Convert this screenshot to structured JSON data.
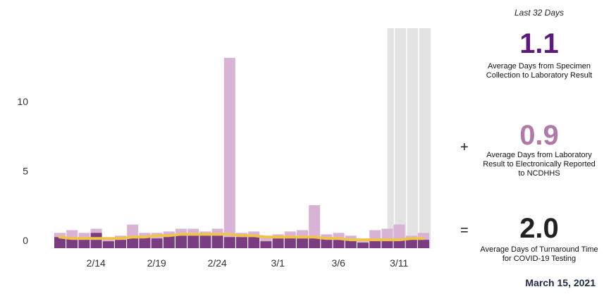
{
  "chart_data": {
    "type": "bar",
    "categories": [
      "2/11",
      "2/12",
      "2/13",
      "2/14",
      "2/15",
      "2/16",
      "2/17",
      "2/18",
      "2/19",
      "2/20",
      "2/21",
      "2/22",
      "2/23",
      "2/24",
      "2/25",
      "2/26",
      "2/27",
      "2/28",
      "3/1",
      "3/2",
      "3/3",
      "3/4",
      "3/5",
      "3/6",
      "3/7",
      "3/8",
      "3/9",
      "3/10",
      "3/11",
      "3/12",
      "3/13"
    ],
    "x_tick_labels": [
      "2/14",
      "2/19",
      "2/24",
      "3/1",
      "3/6",
      "3/11"
    ],
    "y_tick_labels": [
      "0",
      "5",
      "10"
    ],
    "ylim": [
      0,
      14.5
    ],
    "series": [
      {
        "values": [
          0.8,
          0.7,
          0.7,
          1.1,
          0.5,
          0.6,
          0.7,
          0.8,
          0.7,
          0.9,
          0.9,
          0.9,
          0.9,
          0.9,
          0.8,
          0.8,
          0.8,
          0.5,
          0.7,
          0.8,
          0.7,
          0.8,
          0.7,
          0.6,
          0.6,
          0.4,
          0.6,
          0.6,
          0.6,
          0.7,
          0.6
        ]
      },
      {
        "values": [
          1.1,
          1.3,
          1.1,
          1.4,
          0.7,
          0.9,
          1.7,
          1.1,
          1.1,
          1.2,
          1.4,
          1.4,
          1.2,
          1.4,
          13.7,
          1.1,
          1.2,
          0.8,
          1.0,
          1.2,
          1.3,
          3.1,
          1.0,
          1.1,
          0.9,
          0.5,
          1.3,
          1.4,
          1.7,
          0.9,
          1.1
        ]
      },
      {
        "values": [
          0.8,
          0.7,
          0.7,
          0.7,
          0.7,
          0.7,
          0.8,
          0.8,
          0.9,
          0.9,
          1.0,
          1.0,
          1.0,
          1.0,
          1.0,
          0.9,
          0.9,
          0.8,
          0.8,
          0.8,
          0.8,
          0.8,
          0.7,
          0.7,
          0.6,
          0.6,
          0.6,
          0.6,
          0.6,
          0.7,
          0.7
        ]
      }
    ],
    "shaded_region": [
      "3/11",
      "3/13"
    ],
    "colors": {
      "dark_bar": "#7a3d82",
      "light_bar": "#d9b3d5",
      "line": "#f0c44a",
      "shade": "#e3e3e3"
    }
  },
  "summary": {
    "period_label": "Last 32 Days",
    "collection_value": "1.1",
    "collection_desc": "Average Days from Specimen Collection to Laboratory Result",
    "plus_sign": "+",
    "reporting_value": "0.9",
    "reporting_desc": "Average Days from Laboratory Result to Electronically Reported to NCDHHS",
    "equals_sign": "=",
    "turnaround_value": "2.0",
    "turnaround_desc": "Average Days of Turnaround Time for COVID-19 Testing",
    "date": "March 15, 2021"
  }
}
